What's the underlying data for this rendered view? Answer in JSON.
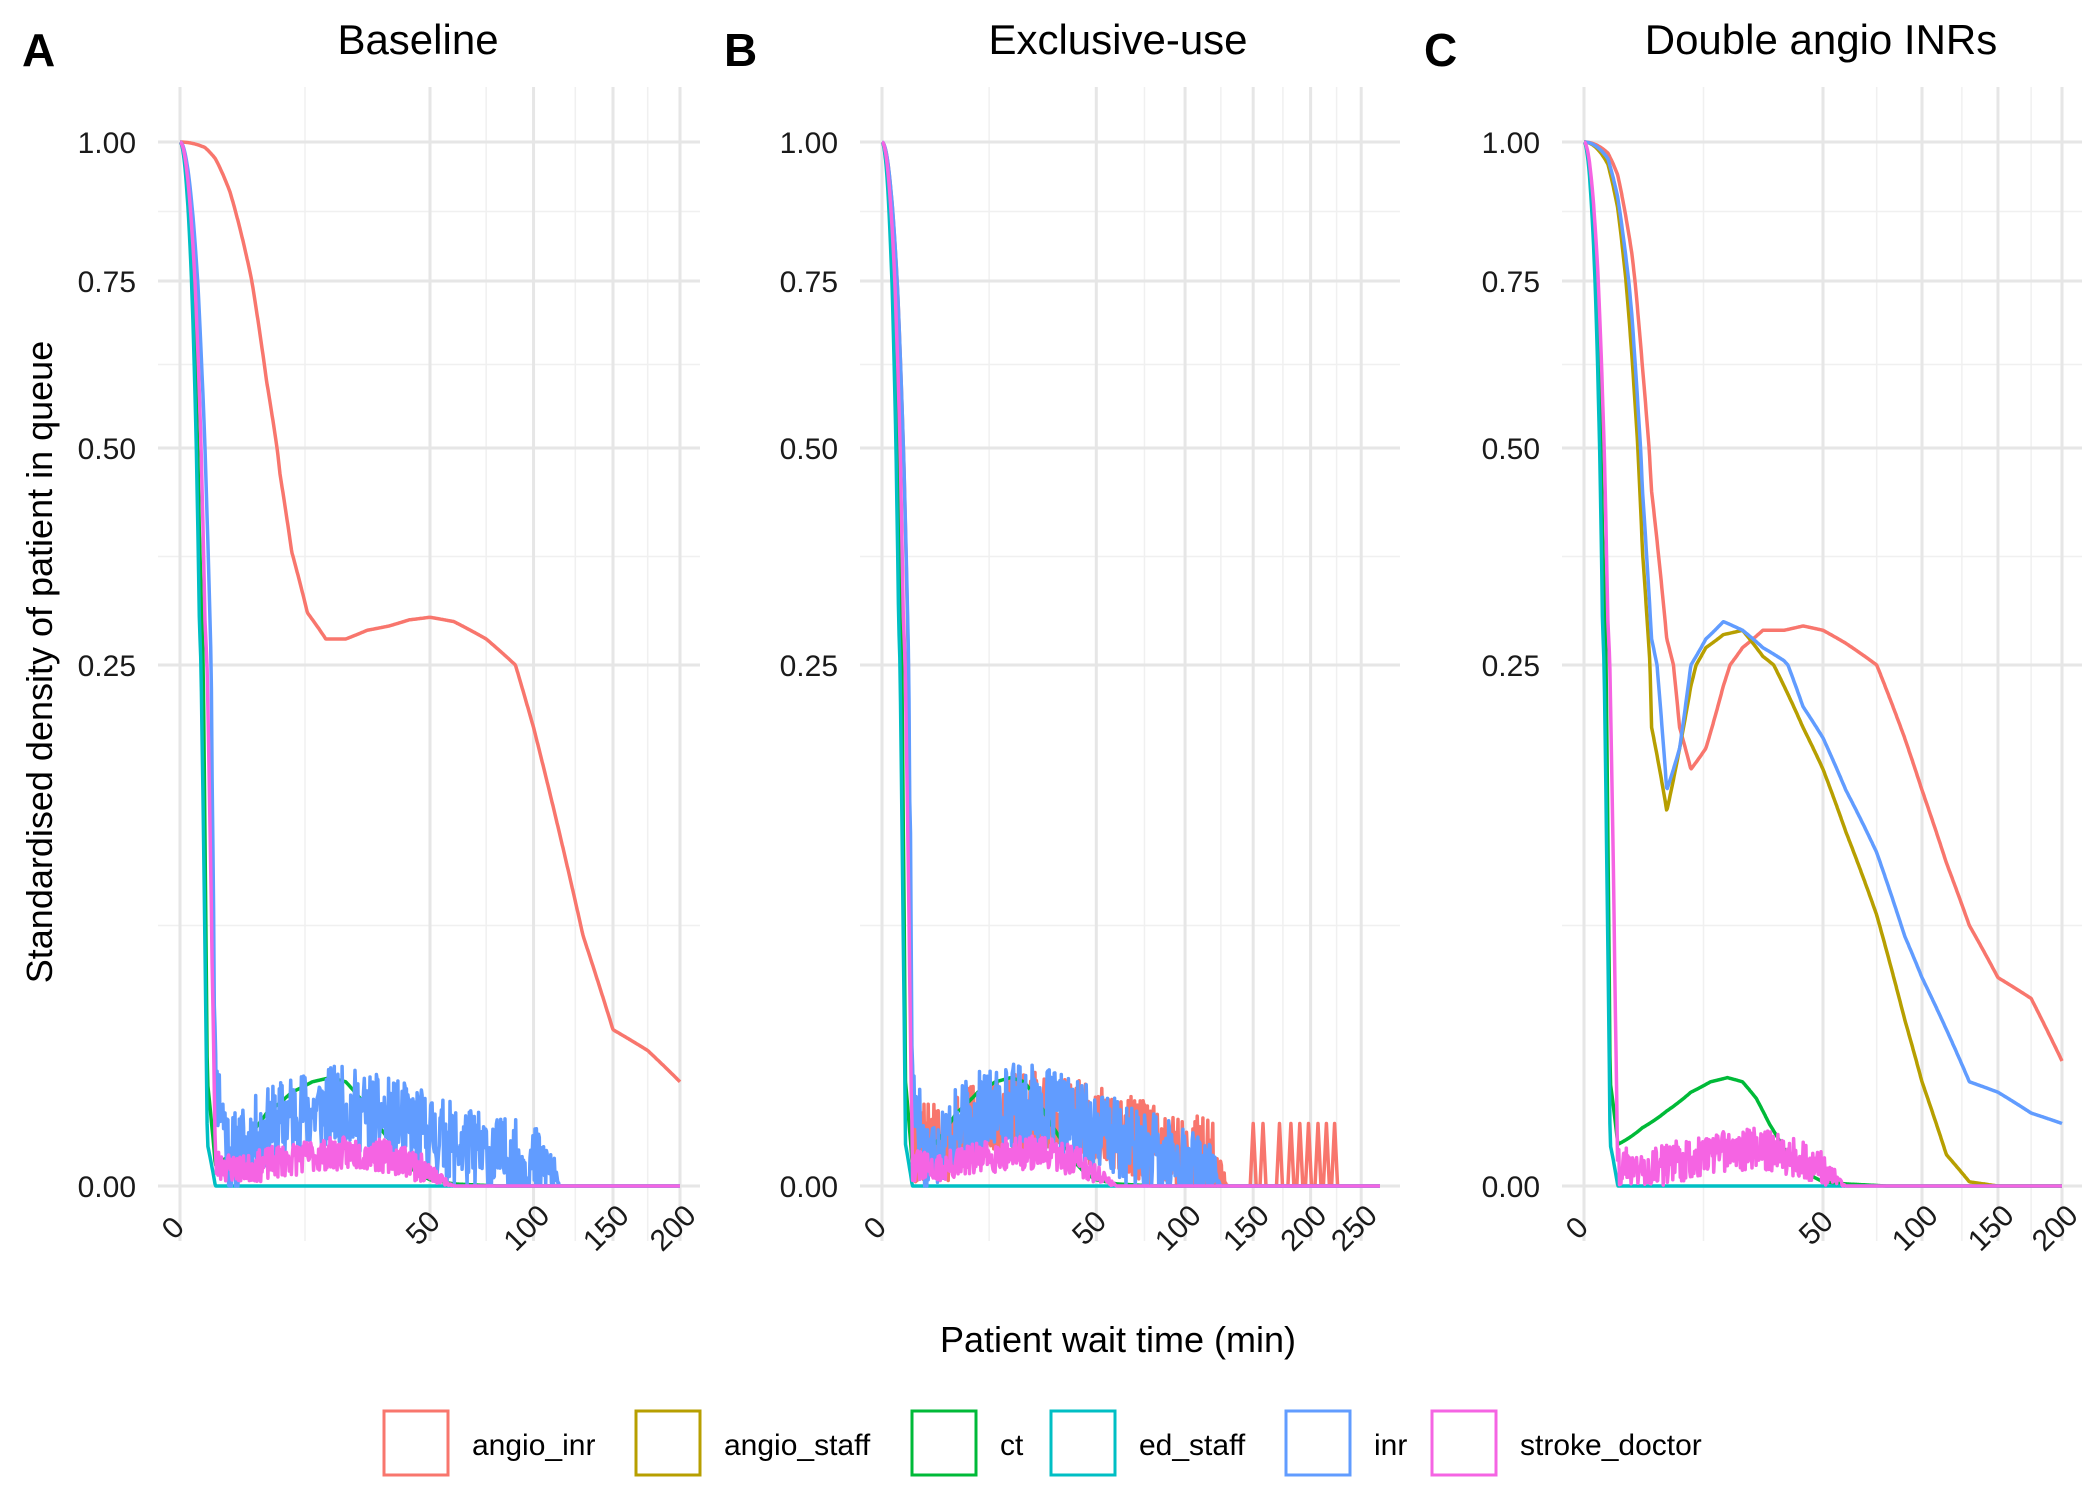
{
  "figure": {
    "xlabel": "Patient wait time (min)",
    "ylabel": "Standardised density of patient in queue"
  },
  "colors": {
    "angio_inr": "#F8766D",
    "angio_staff": "#B79F00",
    "ct": "#00BA38",
    "ed_staff": "#00BFC4",
    "inr": "#619CFF",
    "stroke_doctor": "#F564E3"
  },
  "legend": {
    "placement": "bottom",
    "items": [
      {
        "key": "angio_inr",
        "label": "angio_inr"
      },
      {
        "key": "angio_staff",
        "label": "angio_staff"
      },
      {
        "key": "ct",
        "label": "ct"
      },
      {
        "key": "ed_staff",
        "label": "ed_staff"
      },
      {
        "key": "inr",
        "label": "inr"
      },
      {
        "key": "stroke_doctor",
        "label": "stroke_doctor"
      }
    ]
  },
  "chart_data": [
    {
      "type": "line",
      "panel_tag": "A",
      "title": "Baseline",
      "x_scale": "sqrt",
      "xlim": [
        0,
        200
      ],
      "x_ticks": [
        0,
        50,
        100,
        150,
        200
      ],
      "x_tick_labels": [
        "0",
        "50",
        "100",
        "150",
        "200"
      ],
      "x_minor_ticks": [
        12.5,
        75,
        125,
        175
      ],
      "ylim": [
        0,
        1
      ],
      "y_ticks": [
        0,
        0.25,
        0.5,
        0.75,
        1
      ],
      "y_tick_labels": [
        "0.00",
        "0.25",
        "0.50",
        "0.75",
        "1.00"
      ],
      "y_minor_ticks": [
        0.125,
        0.375,
        0.625,
        0.875
      ],
      "grid": true,
      "series": [
        {
          "key": "angio_inr",
          "style": "smooth",
          "x": [
            0,
            0.5,
            1,
            2,
            4,
            6,
            8,
            10,
            13,
            17,
            22,
            28,
            35,
            42,
            50,
            60,
            75,
            90,
            100,
            115,
            130,
            150,
            175,
            200
          ],
          "y": [
            1,
            0.99,
            0.97,
            0.91,
            0.76,
            0.6,
            0.47,
            0.38,
            0.31,
            0.28,
            0.28,
            0.29,
            0.295,
            0.302,
            0.305,
            0.3,
            0.28,
            0.25,
            0.22,
            0.17,
            0.12,
            0.075,
            0.065,
            0.05
          ]
        },
        {
          "key": "ct",
          "style": "smooth",
          "x": [
            0,
            0.3,
            0.6,
            1,
            3,
            6,
            10,
            14,
            18,
            22,
            26,
            30,
            35,
            40,
            45,
            50,
            60,
            80,
            120,
            160,
            200
          ],
          "y": [
            1,
            0.4,
            0.05,
            0.01,
            0.02,
            0.035,
            0.045,
            0.05,
            0.052,
            0.05,
            0.042,
            0.032,
            0.022,
            0.012,
            0.006,
            0.003,
            0.001,
            0,
            0,
            0,
            0
          ]
        },
        {
          "key": "ed_staff",
          "style": "smooth",
          "x": [
            0,
            0.3,
            0.6,
            1,
            5,
            20,
            50,
            100,
            150,
            200
          ],
          "y": [
            1,
            0.3,
            0.02,
            0,
            0,
            0,
            0,
            0,
            0,
            0
          ]
        },
        {
          "key": "inr",
          "style": "noisy",
          "amp": 0.02,
          "seed": 11,
          "x": [
            0,
            0.5,
            1,
            2,
            5,
            10,
            20,
            30,
            40,
            50,
            60,
            70,
            80,
            90,
            100,
            110,
            115,
            130,
            200
          ],
          "y": [
            1,
            0.5,
            0.05,
            0.015,
            0.025,
            0.035,
            0.038,
            0.034,
            0.03,
            0.025,
            0.02,
            0.017,
            0.014,
            0.012,
            0.01,
            0.008,
            0,
            0,
            0
          ]
        },
        {
          "key": "stroke_doctor",
          "style": "noisy",
          "amp": 0.008,
          "seed": 23,
          "x": [
            0,
            0.5,
            1,
            3,
            8,
            15,
            25,
            35,
            42,
            50,
            60,
            200
          ],
          "y": [
            1,
            0.3,
            0.01,
            0.008,
            0.012,
            0.015,
            0.016,
            0.014,
            0.012,
            0.006,
            0,
            0
          ]
        }
      ]
    },
    {
      "type": "line",
      "panel_tag": "B",
      "title": "Exclusive-use",
      "x_scale": "sqrt",
      "xlim": [
        0,
        270
      ],
      "x_ticks": [
        0,
        50,
        100,
        150,
        200,
        250
      ],
      "x_tick_labels": [
        "0",
        "50",
        "100",
        "150",
        "200",
        "250"
      ],
      "x_minor_ticks": [
        12.5,
        75,
        125,
        175,
        225
      ],
      "ylim": [
        0,
        1
      ],
      "y_ticks": [
        0,
        0.25,
        0.5,
        0.75,
        1
      ],
      "y_tick_labels": [
        "0.00",
        "0.25",
        "0.50",
        "0.75",
        "1.00"
      ],
      "y_minor_ticks": [
        0.125,
        0.375,
        0.625,
        0.875
      ],
      "grid": true,
      "series": [
        {
          "key": "angio_inr",
          "style": "noisy",
          "amp": 0.02,
          "seed": 5,
          "x": [
            0,
            0.5,
            1,
            3,
            10,
            20,
            30,
            40,
            50,
            60,
            80,
            100,
            120,
            130,
            270
          ],
          "y": [
            1,
            0.5,
            0.02,
            0.02,
            0.03,
            0.035,
            0.035,
            0.032,
            0.028,
            0.025,
            0.02,
            0.015,
            0.012,
            0,
            0
          ]
        },
        {
          "key": "angio_inr",
          "style": "spikes",
          "x": [
            150,
            158,
            172,
            182,
            190,
            198,
            207,
            215,
            223
          ],
          "y": [
            0.03,
            0.03,
            0.03,
            0.03,
            0.03,
            0.03,
            0.03,
            0.03,
            0.03
          ]
        },
        {
          "key": "ct",
          "style": "smooth",
          "x": [
            0,
            0.3,
            0.6,
            1,
            3,
            6,
            10,
            14,
            18,
            22,
            26,
            30,
            35,
            40,
            45,
            50,
            60,
            80,
            150,
            270
          ],
          "y": [
            1,
            0.4,
            0.05,
            0.01,
            0.02,
            0.035,
            0.045,
            0.05,
            0.052,
            0.05,
            0.042,
            0.032,
            0.022,
            0.012,
            0.006,
            0.003,
            0.001,
            0,
            0,
            0
          ]
        },
        {
          "key": "ed_staff",
          "style": "smooth",
          "x": [
            0,
            0.3,
            0.6,
            1,
            5,
            20,
            50,
            100,
            200,
            270
          ],
          "y": [
            1,
            0.3,
            0.02,
            0,
            0,
            0,
            0,
            0,
            0,
            0
          ]
        },
        {
          "key": "inr",
          "style": "noisy",
          "amp": 0.02,
          "seed": 17,
          "x": [
            0,
            0.5,
            1,
            2,
            5,
            10,
            20,
            30,
            40,
            50,
            60,
            70,
            80,
            90,
            100,
            110,
            120,
            125,
            270
          ],
          "y": [
            1,
            0.5,
            0.05,
            0.015,
            0.025,
            0.035,
            0.04,
            0.036,
            0.032,
            0.027,
            0.022,
            0.018,
            0.015,
            0.012,
            0.01,
            0.008,
            0.006,
            0,
            0
          ]
        },
        {
          "key": "stroke_doctor",
          "style": "noisy",
          "amp": 0.008,
          "seed": 31,
          "x": [
            0,
            0.5,
            1,
            3,
            8,
            15,
            25,
            35,
            42,
            50,
            60,
            270
          ],
          "y": [
            1,
            0.3,
            0.01,
            0.008,
            0.012,
            0.015,
            0.016,
            0.014,
            0.012,
            0.006,
            0,
            0
          ]
        }
      ]
    },
    {
      "type": "line",
      "panel_tag": "C",
      "title": "Double angio INRs",
      "x_scale": "sqrt",
      "xlim": [
        0,
        200
      ],
      "x_ticks": [
        0,
        50,
        100,
        150,
        200
      ],
      "x_tick_labels": [
        "0",
        "50",
        "100",
        "150",
        "200"
      ],
      "x_minor_ticks": [
        12.5,
        75,
        125,
        175
      ],
      "ylim": [
        0,
        1
      ],
      "y_ticks": [
        0,
        0.25,
        0.5,
        0.75,
        1
      ],
      "y_tick_labels": [
        "0.00",
        "0.25",
        "0.50",
        "0.75",
        "1.00"
      ],
      "y_minor_ticks": [
        0.125,
        0.375,
        0.625,
        0.875
      ],
      "grid": true,
      "series": [
        {
          "key": "angio_inr",
          "style": "smooth",
          "x": [
            0,
            0.5,
            1,
            2,
            3,
            4,
            6,
            8,
            10,
            13,
            17,
            22,
            28,
            35,
            42,
            50,
            60,
            75,
            90,
            100,
            115,
            130,
            150,
            175,
            200
          ],
          "y": [
            1,
            0.98,
            0.94,
            0.8,
            0.62,
            0.45,
            0.28,
            0.22,
            0.2,
            0.21,
            0.24,
            0.27,
            0.29,
            0.29,
            0.295,
            0.29,
            0.275,
            0.25,
            0.215,
            0.19,
            0.155,
            0.125,
            0.1,
            0.09,
            0.06
          ]
        },
        {
          "key": "angio_staff",
          "style": "smooth",
          "x": [
            0,
            0.5,
            1,
            2,
            3,
            4,
            6,
            8,
            10,
            13,
            17,
            22,
            28,
            35,
            42,
            50,
            60,
            75,
            90,
            100,
            115,
            130,
            150,
            200
          ],
          "y": [
            1,
            0.96,
            0.88,
            0.64,
            0.38,
            0.22,
            0.18,
            0.21,
            0.24,
            0.27,
            0.285,
            0.29,
            0.26,
            0.24,
            0.22,
            0.2,
            0.17,
            0.13,
            0.08,
            0.05,
            0.015,
            0.002,
            0,
            0
          ]
        },
        {
          "key": "ct",
          "style": "smooth",
          "x": [
            0,
            0.3,
            0.6,
            1,
            3,
            6,
            10,
            14,
            18,
            22,
            26,
            30,
            35,
            40,
            45,
            50,
            60,
            80,
            150,
            200
          ],
          "y": [
            1,
            0.4,
            0.05,
            0.02,
            0.028,
            0.036,
            0.045,
            0.05,
            0.052,
            0.05,
            0.042,
            0.03,
            0.018,
            0.01,
            0.005,
            0.002,
            0.001,
            0,
            0,
            0
          ]
        },
        {
          "key": "ed_staff",
          "style": "smooth",
          "x": [
            0,
            0.3,
            0.6,
            1,
            5,
            20,
            50,
            100,
            150,
            200
          ],
          "y": [
            1,
            0.3,
            0.02,
            0,
            0,
            0,
            0,
            0,
            0,
            0
          ]
        },
        {
          "key": "inr",
          "style": "smooth",
          "x": [
            0,
            0.5,
            1,
            2,
            3,
            4,
            6,
            8,
            10,
            13,
            17,
            22,
            28,
            35,
            42,
            50,
            60,
            75,
            90,
            100,
            115,
            130,
            150,
            175,
            200
          ],
          "y": [
            1,
            0.97,
            0.9,
            0.7,
            0.45,
            0.28,
            0.19,
            0.21,
            0.25,
            0.28,
            0.3,
            0.29,
            0.27,
            0.255,
            0.23,
            0.215,
            0.19,
            0.16,
            0.12,
            0.1,
            0.075,
            0.05,
            0.045,
            0.035,
            0.03
          ]
        },
        {
          "key": "stroke_doctor",
          "style": "noisy",
          "amp": 0.01,
          "seed": 43,
          "x": [
            0,
            0.5,
            1,
            3,
            8,
            15,
            25,
            35,
            42,
            50,
            55,
            60,
            200
          ],
          "y": [
            1,
            0.3,
            0.01,
            0.008,
            0.012,
            0.016,
            0.018,
            0.016,
            0.012,
            0.008,
            0.004,
            0,
            0
          ]
        }
      ]
    }
  ]
}
